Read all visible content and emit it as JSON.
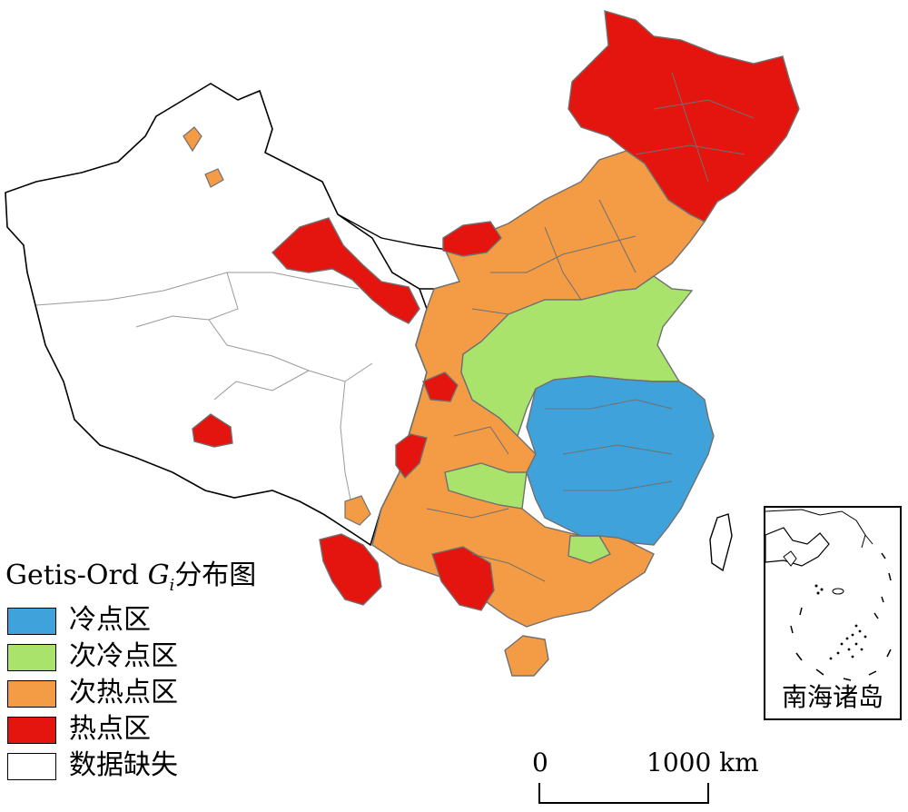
{
  "legend": {
    "title_prefix": "Getis-Ord ",
    "title_symbol": "G",
    "title_subscript": "i",
    "title_suffix": "分布图",
    "items": [
      {
        "label": "冷点区",
        "color": "#3fa2db"
      },
      {
        "label": "次冷点区",
        "color": "#a9e36c"
      },
      {
        "label": "次热点区",
        "color": "#f49c45"
      },
      {
        "label": "热点区",
        "color": "#e4150f"
      },
      {
        "label": "数据缺失",
        "color": "#ffffff"
      }
    ]
  },
  "inset": {
    "label": "南海诸岛"
  },
  "scale_bar": {
    "start_label": "0",
    "end_label": "1000 km"
  },
  "colors": {
    "outline": "#000000",
    "internal_border": "#707070",
    "thin_border": "#9a9a9a"
  }
}
